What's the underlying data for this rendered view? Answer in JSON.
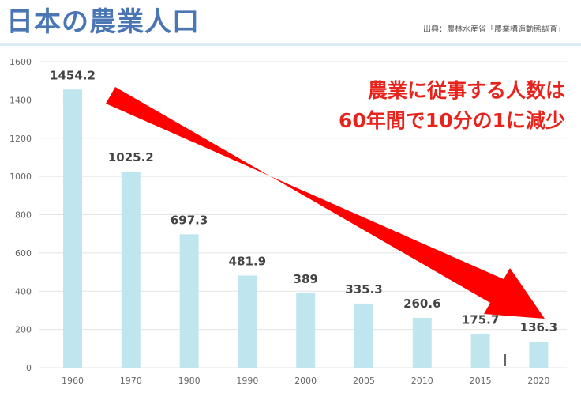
{
  "header": {
    "title": "日本の農業人口",
    "source": "出典：農林水産省「農業構造動態調査」"
  },
  "annotation": {
    "line1": "農業に従事する人数は",
    "line2": "60年間で10分の1に減少"
  },
  "colors": {
    "title": "#4a77b4",
    "bar": "#bfe6ef",
    "arrow": "#ff0000",
    "annotation": "#e8231c",
    "grid": "#e3e3e3"
  },
  "chart_data": {
    "type": "bar",
    "title": "日本の農業人口",
    "categories": [
      "1960",
      "1970",
      "1980",
      "1990",
      "2000",
      "2005",
      "2010",
      "2015",
      "2020"
    ],
    "values": [
      1454.2,
      1025.2,
      697.3,
      481.9,
      389,
      335.3,
      260.6,
      175.7,
      136.3
    ],
    "value_labels": [
      "1454.2",
      "1025.2",
      "697.3",
      "481.9",
      "389",
      "335.3",
      "260.6",
      "175.7",
      "136.3"
    ],
    "yticks": [
      "0",
      "200",
      "400",
      "600",
      "800",
      "1000",
      "1200",
      "1400",
      "1600"
    ],
    "ylim": [
      0,
      1600
    ],
    "xlabel": "",
    "ylabel": "",
    "grid": true,
    "annotation_arrow": "down-right"
  }
}
